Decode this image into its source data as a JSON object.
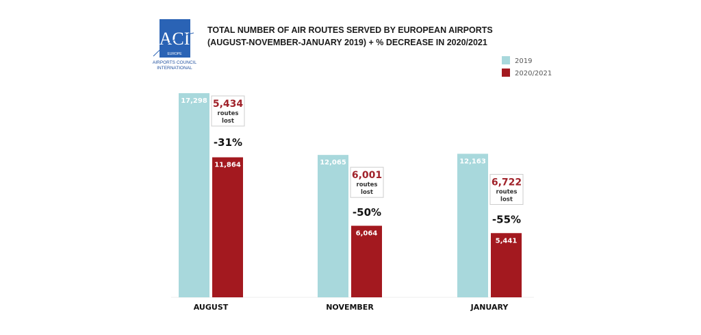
{
  "logo": {
    "text": "ACI",
    "sub": "EUROPE",
    "line1": "AIRPORTS COUNCIL",
    "line2": "INTERNATIONAL",
    "color": "#2a63b5"
  },
  "chart_data": {
    "type": "bar",
    "title_line1": "TOTAL NUMBER OF AIR ROUTES SERVED BY EUROPEAN AIRPORTS",
    "title_line2": "(AUGUST-NOVEMBER-JANUARY 2019) + % DECREASE IN 2020/2021",
    "categories": [
      "AUGUST",
      "NOVEMBER",
      "JANUARY"
    ],
    "series": [
      {
        "name": "2019",
        "color": "#a8d8dc",
        "values": [
          17298,
          12065,
          12163
        ],
        "labels": [
          "17,298",
          "12,065",
          "12,163"
        ]
      },
      {
        "name": "2020/2021",
        "color": "#a3191f",
        "values": [
          11864,
          6064,
          5441
        ],
        "labels": [
          "11,864",
          "6,064",
          "5,441"
        ]
      }
    ],
    "annotations": [
      {
        "lost": "5,434",
        "sub1": "routes",
        "sub2": "lost",
        "pct": "-31%"
      },
      {
        "lost": "6,001",
        "sub1": "routes",
        "sub2": "lost",
        "pct": "-50%"
      },
      {
        "lost": "6,722",
        "sub1": "routes",
        "sub2": "lost",
        "pct": "-55%"
      }
    ],
    "legend_position": "top-right",
    "grid": false,
    "ylim": [
      0,
      17298
    ]
  }
}
